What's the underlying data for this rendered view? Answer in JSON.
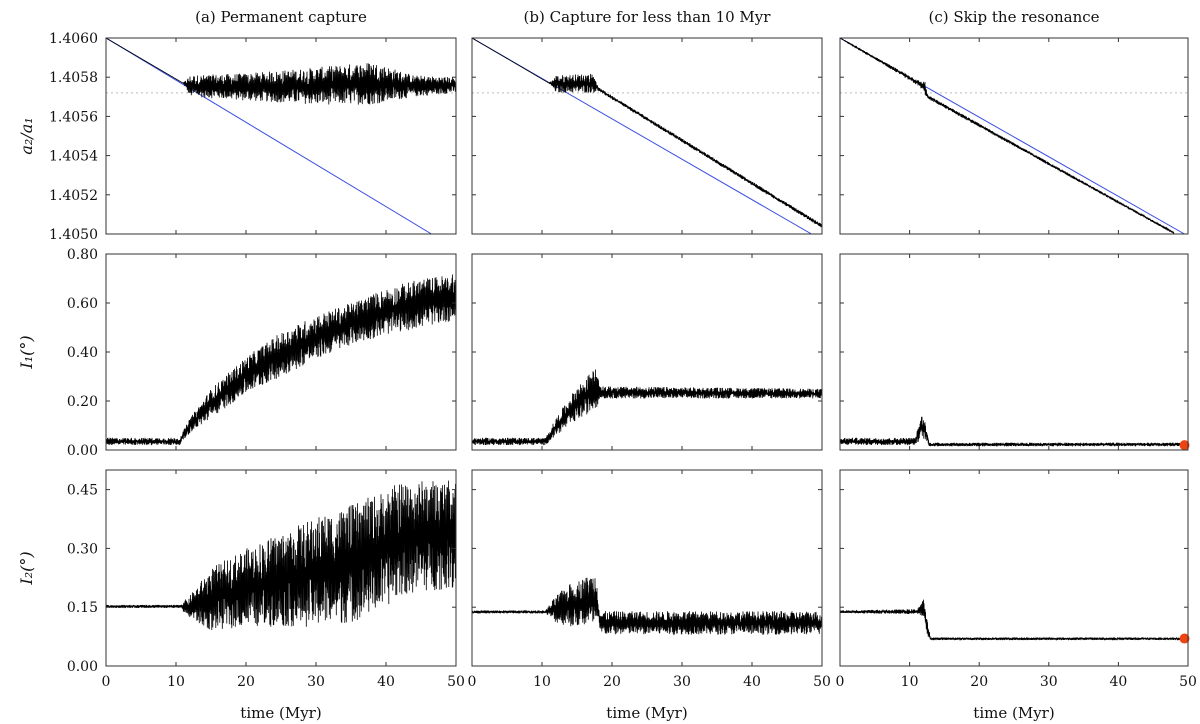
{
  "chart_data": {
    "type": "line",
    "columns": [
      {
        "title": "(a) Permanent capture"
      },
      {
        "title": "(b) Capture for less than 10 Myr"
      },
      {
        "title": "(c) Skip the resonance"
      }
    ],
    "xlabel": "time (Myr)",
    "xlim": [
      0,
      50
    ],
    "xticks": [
      "0",
      "10",
      "20",
      "30",
      "40",
      "50"
    ],
    "rows": [
      {
        "ylabel": "a₂/a₁",
        "ylim": [
          1.405,
          1.406
        ],
        "yticks": [
          "1.4050",
          "1.4052",
          "1.4054",
          "1.4056",
          "1.4058",
          "1.4060"
        ],
        "yticks_num": [
          1.405,
          1.4052,
          1.4054,
          1.4056,
          1.4058,
          1.406
        ],
        "reference_dotted_y": 1.40572
      },
      {
        "ylabel": "I₁(°)",
        "ylim": [
          0,
          0.8
        ],
        "yticks": [
          "0.00",
          "0.20",
          "0.40",
          "0.60",
          "0.80"
        ],
        "yticks_num": [
          0,
          0.2,
          0.4,
          0.6,
          0.8
        ]
      },
      {
        "ylabel": "I₂(°)",
        "ylim": [
          0,
          0.5
        ],
        "yticks": [
          "0.00",
          "0.15",
          "0.30",
          "0.45"
        ],
        "yticks_num": [
          0,
          0.15,
          0.3,
          0.45
        ]
      }
    ],
    "panels": [
      {
        "row": 0,
        "col": 0,
        "blue_line": [
          [
            0,
            1.406
          ],
          [
            46.5,
            1.405
          ]
        ],
        "envelope": [
          [
            0,
            1.406,
            1.406
          ],
          [
            11,
            1.40577,
            1.40577
          ],
          [
            12,
            1.4057,
            1.40581
          ],
          [
            20,
            1.40568,
            1.40582
          ],
          [
            30,
            1.40566,
            1.40585
          ],
          [
            38,
            1.40566,
            1.40588
          ],
          [
            44,
            1.4057,
            1.40581
          ],
          [
            50,
            1.40572,
            1.4058
          ]
        ]
      },
      {
        "row": 0,
        "col": 1,
        "blue_line": [
          [
            0,
            1.406
          ],
          [
            48.5,
            1.405
          ]
        ],
        "envelope": [
          [
            0,
            1.406,
            1.406
          ],
          [
            11,
            1.40577,
            1.40577
          ],
          [
            12,
            1.40572,
            1.40581
          ],
          [
            17.5,
            1.40572,
            1.40582
          ],
          [
            18,
            1.40573,
            1.40575
          ],
          [
            50,
            1.40503,
            1.40505
          ]
        ]
      },
      {
        "row": 0,
        "col": 2,
        "blue_line": [
          [
            0,
            1.406
          ],
          [
            49.5,
            1.405
          ]
        ],
        "envelope": [
          [
            0,
            1.406,
            1.406
          ],
          [
            11.5,
            1.40575,
            1.40578
          ],
          [
            12.2,
            1.40571,
            1.40578
          ],
          [
            12.6,
            1.40569,
            1.40571
          ],
          [
            48,
            1.405,
            1.40501
          ]
        ]
      },
      {
        "row": 1,
        "col": 0,
        "envelope": [
          [
            0,
            0.02,
            0.05
          ],
          [
            10.5,
            0.02,
            0.05
          ],
          [
            12,
            0.07,
            0.13
          ],
          [
            15,
            0.13,
            0.25
          ],
          [
            20,
            0.23,
            0.38
          ],
          [
            25,
            0.3,
            0.48
          ],
          [
            30,
            0.37,
            0.55
          ],
          [
            35,
            0.43,
            0.6
          ],
          [
            40,
            0.47,
            0.66
          ],
          [
            45,
            0.5,
            0.7
          ],
          [
            50,
            0.53,
            0.72
          ]
        ]
      },
      {
        "row": 1,
        "col": 1,
        "envelope": [
          [
            0,
            0.02,
            0.05
          ],
          [
            10.5,
            0.02,
            0.05
          ],
          [
            12,
            0.06,
            0.13
          ],
          [
            15,
            0.12,
            0.26
          ],
          [
            17.8,
            0.17,
            0.34
          ],
          [
            18.2,
            0.21,
            0.26
          ],
          [
            50,
            0.21,
            0.25
          ]
        ]
      },
      {
        "row": 1,
        "col": 2,
        "endpoint": [
          49.5,
          0.02
        ],
        "envelope": [
          [
            0,
            0.02,
            0.05
          ],
          [
            10.8,
            0.02,
            0.05
          ],
          [
            11.8,
            0.05,
            0.15
          ],
          [
            12.3,
            0.04,
            0.11
          ],
          [
            12.8,
            0.015,
            0.03
          ],
          [
            50,
            0.015,
            0.03
          ]
        ]
      },
      {
        "row": 2,
        "col": 0,
        "envelope": [
          [
            0,
            0.148,
            0.156
          ],
          [
            10.5,
            0.148,
            0.156
          ],
          [
            12,
            0.12,
            0.18
          ],
          [
            15,
            0.09,
            0.25
          ],
          [
            20,
            0.1,
            0.3
          ],
          [
            25,
            0.1,
            0.34
          ],
          [
            30,
            0.1,
            0.38
          ],
          [
            35,
            0.11,
            0.41
          ],
          [
            40,
            0.15,
            0.45
          ],
          [
            42,
            0.18,
            0.47
          ],
          [
            50,
            0.2,
            0.48
          ]
        ]
      },
      {
        "row": 2,
        "col": 1,
        "envelope": [
          [
            0,
            0.134,
            0.142
          ],
          [
            10.5,
            0.134,
            0.142
          ],
          [
            12,
            0.11,
            0.18
          ],
          [
            14,
            0.1,
            0.21
          ],
          [
            17.8,
            0.1,
            0.24
          ],
          [
            18.3,
            0.08,
            0.14
          ],
          [
            50,
            0.08,
            0.14
          ]
        ]
      },
      {
        "row": 2,
        "col": 2,
        "endpoint": [
          49.5,
          0.07
        ],
        "envelope": [
          [
            0,
            0.135,
            0.142
          ],
          [
            11,
            0.132,
            0.145
          ],
          [
            12,
            0.125,
            0.17
          ],
          [
            12.5,
            0.08,
            0.12
          ],
          [
            13,
            0.066,
            0.073
          ],
          [
            50,
            0.066,
            0.073
          ]
        ]
      }
    ],
    "colors": {
      "trace": "#000000",
      "model_line": "#3b4fe0",
      "reference": "#bbbbbb",
      "endpoint": "#ee4411"
    }
  }
}
